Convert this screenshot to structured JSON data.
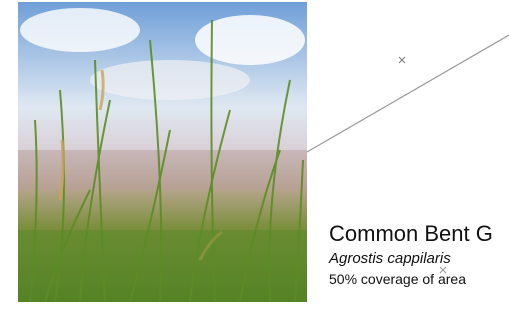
{
  "card": {
    "name": "Common Bent G",
    "latin_name": "Agrostis cappilaris",
    "coverage": "50% coverage of area"
  }
}
